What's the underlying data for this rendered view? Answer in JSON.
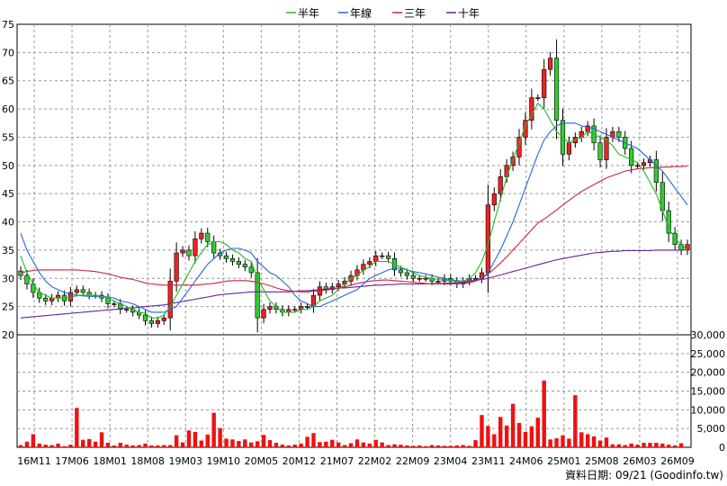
{
  "chart_data": {
    "type": "candlestick",
    "title": "",
    "legend": [
      {
        "label": "半年",
        "color": "#22bb22"
      },
      {
        "label": "年線",
        "color": "#2266dd"
      },
      {
        "label": "三年",
        "color": "#cc2244"
      },
      {
        "label": "十年",
        "color": "#662299"
      }
    ],
    "legend_position": "top-center",
    "grid": true,
    "price_axis": {
      "ylim": [
        20,
        75
      ],
      "ticks": [
        20,
        25,
        30,
        35,
        40,
        45,
        50,
        55,
        60,
        65,
        70,
        75
      ]
    },
    "volume_axis": {
      "ylim": [
        0,
        30000
      ],
      "ticks": [
        "30,000",
        "25,000",
        "20,000",
        "15,000",
        "10,000",
        "5,000",
        "0"
      ],
      "tick_values": [
        30000,
        25000,
        20000,
        15000,
        10000,
        5000,
        0
      ]
    },
    "x_tick_labels": [
      "16M11",
      "17M06",
      "18M01",
      "18M08",
      "19M03",
      "19M10",
      "20M05",
      "20M12",
      "21M07",
      "22M02",
      "22M09",
      "23M04",
      "23M11",
      "24M06",
      "25M01",
      "25M08",
      "26M03",
      "26M09"
    ],
    "monthly_close": [
      30.5,
      29,
      27.5,
      26.5,
      26,
      26.5,
      27,
      26,
      27.5,
      28,
      27.5,
      27,
      27,
      26.5,
      25.5,
      25.5,
      24.5,
      24.5,
      24,
      23.5,
      22.5,
      22,
      22.5,
      23,
      29.5,
      34.5,
      35,
      34,
      37,
      38,
      36.5,
      34.5,
      34,
      33.5,
      33,
      32.5,
      32,
      31,
      23,
      24.5,
      25,
      24.5,
      24,
      24.5,
      24.5,
      25,
      25,
      27,
      28.5,
      28,
      28.5,
      29,
      29.5,
      30.5,
      31.5,
      32.5,
      33,
      34,
      34,
      33.5,
      31.5,
      31,
      30.5,
      30,
      30,
      30,
      29.5,
      29.5,
      30,
      29.5,
      29,
      29.5,
      30,
      30,
      31,
      43,
      45,
      48,
      50,
      51.5,
      55,
      58,
      62,
      62,
      67,
      69,
      58,
      52,
      54,
      55,
      56,
      57,
      54,
      51,
      55,
      56,
      55,
      53,
      50,
      50,
      50.5,
      51,
      47,
      42,
      38,
      36,
      35,
      36
    ],
    "monthly_volume": [
      600,
      1500,
      3500,
      1000,
      700,
      600,
      1000,
      300,
      700,
      10500,
      2000,
      2200,
      1500,
      4000,
      1200,
      500,
      1200,
      700,
      500,
      600,
      1000,
      500,
      500,
      600,
      600,
      3200,
      1300,
      4500,
      4100,
      1800,
      3400,
      9200,
      5100,
      2300,
      2100,
      1700,
      2100,
      1300,
      1600,
      3300,
      1900,
      1200,
      700,
      500,
      700,
      1000,
      2800,
      3800,
      1400,
      1500,
      2000,
      1300,
      600,
      1100,
      2100,
      1300,
      1000,
      2000,
      1300,
      600,
      800,
      700,
      500,
      400,
      500,
      300,
      600,
      500,
      400,
      400,
      500,
      600,
      400,
      1900,
      8600,
      5700,
      3500,
      8100,
      5800,
      11600,
      6500,
      4100,
      5600,
      7900,
      17800,
      2100,
      2400,
      3200,
      2300,
      13900,
      4000,
      3500,
      2900,
      1800,
      2600,
      800,
      800,
      600,
      1000,
      700,
      1200,
      1200,
      1200,
      1000,
      700,
      500,
      1100
    ],
    "ma_half_year": [
      34,
      31,
      29,
      27.5,
      27,
      26.5,
      26.5,
      26.5,
      26.5,
      27,
      27,
      27,
      27,
      26.8,
      26.5,
      26,
      25.5,
      25,
      24.5,
      24,
      23.8,
      23,
      23,
      23.5,
      25,
      27,
      29,
      31,
      33,
      34.5,
      36,
      36.5,
      36.5,
      36,
      35,
      34.5,
      33.5,
      33,
      30,
      28,
      26,
      25,
      24,
      24,
      24,
      24.5,
      24.5,
      25,
      26,
      26.5,
      27,
      28,
      29,
      30,
      30.5,
      31.5,
      32,
      33,
      33,
      33,
      32.5,
      32,
      31.5,
      31,
      30.5,
      30.2,
      30,
      29.8,
      29.7,
      29.6,
      29.5,
      29.5,
      30,
      31,
      33,
      36,
      40,
      44,
      48,
      51,
      54,
      57,
      59,
      61,
      60,
      58,
      56,
      55,
      54,
      54.5,
      55,
      56,
      55.5,
      55,
      54.5,
      53.5,
      52,
      51.5,
      51,
      50.5,
      49,
      47,
      45,
      42,
      39,
      37,
      36,
      35
    ],
    "ma_year": [
      38,
      35,
      33,
      31,
      29.5,
      28.5,
      28,
      27.5,
      27.2,
      27,
      26.9,
      26.8,
      26.8,
      26.8,
      26.7,
      26.5,
      26,
      25.8,
      25.5,
      25,
      24.5,
      24,
      24,
      24,
      24.5,
      25,
      26.5,
      28,
      29.5,
      31,
      32.5,
      33.5,
      34.5,
      35,
      35.3,
      35.3,
      35,
      34.5,
      33,
      32,
      31,
      30.5,
      29.5,
      28.5,
      27,
      26,
      25.5,
      25,
      25,
      25.5,
      26,
      26.5,
      27,
      27.5,
      28,
      29,
      30,
      30.5,
      31,
      31.5,
      31.8,
      31.8,
      31.5,
      31.2,
      31,
      30.8,
      30.5,
      30.2,
      30,
      29.8,
      29.6,
      29.5,
      29.5,
      29.7,
      30,
      31,
      33,
      35,
      37.5,
      40,
      43,
      46,
      49,
      52,
      54.5,
      56,
      57,
      57.5,
      57.5,
      57.5,
      57,
      56.8,
      56.5,
      56,
      55.5,
      55,
      54.5,
      54,
      53.5,
      53,
      52,
      51,
      50,
      49,
      47.5,
      46,
      44.5,
      43
    ],
    "ma_three_year": [
      31,
      31.2,
      31.4,
      31.5,
      31.5,
      31.5,
      31.5,
      31.5,
      31.5,
      31.5,
      31.4,
      31.3,
      31.2,
      31,
      30.8,
      30.5,
      30.2,
      30,
      29.8,
      29.5,
      29.2,
      29,
      28.9,
      28.8,
      28.8,
      28.8,
      28.8,
      28.8,
      28.8,
      28.9,
      29,
      29.1,
      29.3,
      29.5,
      29.6,
      29.6,
      29.6,
      29.5,
      29.3,
      29,
      28.7,
      28.3,
      28,
      27.8,
      27.7,
      27.6,
      27.6,
      27.7,
      27.8,
      27.9,
      28.1,
      28.3,
      28.5,
      28.8,
      29.1,
      29.3,
      29.5,
      29.6,
      29.7,
      29.7,
      29.6,
      29.5,
      29.4,
      29.3,
      29.2,
      29.1,
      29,
      29,
      29,
      29,
      29,
      29.1,
      29.2,
      29.5,
      30,
      30.8,
      31.7,
      32.7,
      33.8,
      35,
      36.2,
      37.4,
      38.6,
      39.8,
      40.5,
      41.3,
      42.1,
      43,
      43.8,
      44.6,
      45.4,
      46,
      46.6,
      47.2,
      47.8,
      48.2,
      48.6,
      49,
      49.2,
      49.4,
      49.5,
      49.6,
      49.6,
      49.7,
      49.7,
      49.8,
      49.8,
      49.9
    ],
    "ma_ten_year": [
      23,
      23.1,
      23.2,
      23.3,
      23.4,
      23.5,
      23.6,
      23.7,
      23.8,
      23.9,
      24,
      24.1,
      24.2,
      24.3,
      24.4,
      24.5,
      24.6,
      24.7,
      24.8,
      24.9,
      25,
      25.1,
      25.2,
      25.3,
      25.5,
      25.7,
      25.9,
      26.1,
      26.3,
      26.5,
      26.7,
      26.9,
      27.1,
      27.2,
      27.3,
      27.4,
      27.5,
      27.6,
      27.6,
      27.6,
      27.6,
      27.6,
      27.6,
      27.6,
      27.7,
      27.8,
      27.8,
      27.9,
      28,
      28.1,
      28.2,
      28.3,
      28.3,
      28.4,
      28.5,
      28.6,
      28.7,
      28.8,
      28.8,
      28.9,
      28.9,
      29,
      29,
      29,
      29,
      29,
      29.1,
      29.1,
      29.1,
      29.2,
      29.2,
      29.3,
      29.4,
      29.6,
      29.8,
      30,
      30.3,
      30.6,
      30.9,
      31.2,
      31.5,
      31.8,
      32.1,
      32.4,
      32.7,
      33,
      33.3,
      33.5,
      33.7,
      33.9,
      34.1,
      34.3,
      34.5,
      34.6,
      34.7,
      34.8,
      34.8,
      34.9,
      34.9,
      34.9,
      34.9,
      34.9,
      35,
      35,
      35,
      35,
      35,
      35.1
    ]
  },
  "footer": {
    "text": "資料日期: 09/21  (Goodinfo.tw)"
  }
}
